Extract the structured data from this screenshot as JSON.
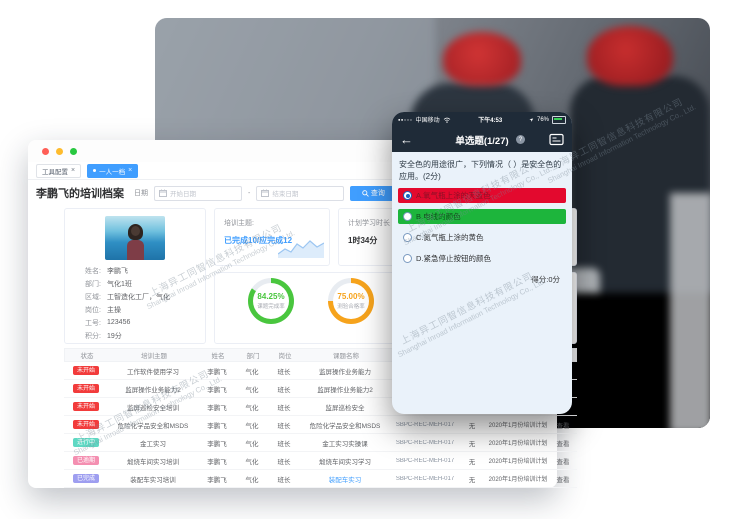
{
  "watermark": {
    "cn": "上海异工同智信息科技有限公司",
    "en": "Shanghai Inroad Information Technology Co., Ltd."
  },
  "desktop": {
    "tabs": [
      {
        "label": "工具配置",
        "close": "×",
        "active": false
      },
      {
        "label": "一人一档",
        "close": "×",
        "active": true
      }
    ],
    "filter": {
      "title": "李鹏飞的培训档案",
      "date_label": "日期",
      "start_placeholder": "开始日期",
      "end_placeholder": "结束日期",
      "range_separator": "-",
      "search_button": "查询"
    },
    "profile": {
      "fields": [
        {
          "label": "姓名:",
          "value": "李鹏飞"
        },
        {
          "label": "部门:",
          "value": "气化1班"
        },
        {
          "label": "区域:",
          "value": "工智造化工厂，气化"
        },
        {
          "label": "岗位:",
          "value": "主操"
        },
        {
          "label": "工号:",
          "value": "123456"
        },
        {
          "label": "积分:",
          "value": "19分"
        }
      ]
    },
    "cards": {
      "topic_label": "培训主题:",
      "topic_value": "已完成10/应完成12",
      "duration_label": "计划学习时长",
      "duration_value": "1时34分"
    },
    "donuts": [
      {
        "display": "84.25%",
        "percent": 84.25,
        "label": "课题完成率",
        "color": "#49c63e"
      },
      {
        "display": "75.00%",
        "percent": 75,
        "label": "测验合格率",
        "color": "#f6a31c"
      }
    ],
    "table": {
      "headers": [
        "状态",
        "培训主题",
        "姓名",
        "部门",
        "岗位",
        "课题名称",
        "课题编号",
        "",
        "",
        ""
      ],
      "rows": [
        {
          "status": "未开始",
          "color": "#f23b3b",
          "topic": "工作软件使用学习",
          "name": "李鹏飞",
          "dept": "气化",
          "post": "班长",
          "course": "监屏操作业务能力",
          "course_link": false,
          "code": "SBPC-REC-MEH-017",
          "teacher": "无",
          "plan": "2020年1月份培训计划",
          "action": "查看"
        },
        {
          "status": "未开始",
          "color": "#f23b3b",
          "topic": "监屏操作业务能力2",
          "name": "李鹏飞",
          "dept": "气化",
          "post": "班长",
          "course": "监屏操作业务能力2",
          "course_link": false,
          "code": "SBPC-REC-MEH-017",
          "teacher": "无",
          "plan": "2020年1月份培训计划",
          "action": "查看"
        },
        {
          "status": "未开始",
          "color": "#f23b3b",
          "topic": "监屏巡检安全培训",
          "name": "李鹏飞",
          "dept": "气化",
          "post": "班长",
          "course": "监屏巡检安全",
          "course_link": false,
          "code": "SBPC-REC-MEH-017",
          "teacher": "无",
          "plan": "2020年1月份培训计划",
          "action": "查看"
        },
        {
          "status": "未开始",
          "color": "#f23b3b",
          "topic": "危险化学品安全和MSDS",
          "name": "李鹏飞",
          "dept": "气化",
          "post": "班长",
          "course": "危险化学品安全和MSDS",
          "course_link": false,
          "code": "SBPC-REC-MEH-017",
          "teacher": "无",
          "plan": "2020年1月份培训计划",
          "action": "查看"
        },
        {
          "status": "进行中",
          "color": "#5fd8c3",
          "topic": "金工实习",
          "name": "李鹏飞",
          "dept": "气化",
          "post": "班长",
          "course": "金工实习实操课",
          "course_link": false,
          "code": "SBPC-REC-MEH-017",
          "teacher": "无",
          "plan": "2020年1月份培训计划",
          "action": "查看"
        },
        {
          "status": "已逾期",
          "color": "#f48fb1",
          "topic": "煅烧车间实习培训",
          "name": "李鹏飞",
          "dept": "气化",
          "post": "班长",
          "course": "煅烧车间实习学习",
          "course_link": false,
          "code": "SBPC-REC-MEH-017",
          "teacher": "无",
          "plan": "2020年1月份培训计划",
          "action": "查看"
        },
        {
          "status": "已完成",
          "color": "#9e9ef0",
          "topic": "装配车实习培训",
          "name": "李鹏飞",
          "dept": "气化",
          "post": "班长",
          "course": "装配车实习",
          "course_link": true,
          "code": "SBPC-REC-MEH-017",
          "teacher": "无",
          "plan": "2020年1月份培训计划",
          "action": "查看"
        }
      ]
    }
  },
  "phone": {
    "status": {
      "signal": "●●○○○",
      "carrier": "中国移动",
      "time": "下午4:53",
      "battery": "76%"
    },
    "nav": {
      "back": "←",
      "title": "单选题(1/27)",
      "help": "?"
    },
    "question": "安全色的用途很广，下列情况（ ）是安全色的应用。(2分)",
    "options": [
      {
        "text": "A.氧气瓶上涂的天蓝色",
        "bg": "#e3092e",
        "text_color": "#8a1026",
        "selected": true
      },
      {
        "text": "B.电线的颜色",
        "bg": "#1db53c",
        "text_color": "#114d1d",
        "selected": false
      },
      {
        "text": "C.氮气瓶上涂的黄色",
        "bg": "",
        "text_color": "#303133",
        "selected": false
      },
      {
        "text": "D.紧急停止按钮的颜色",
        "bg": "",
        "text_color": "#303133",
        "selected": false
      }
    ],
    "score": "得分:0分"
  }
}
